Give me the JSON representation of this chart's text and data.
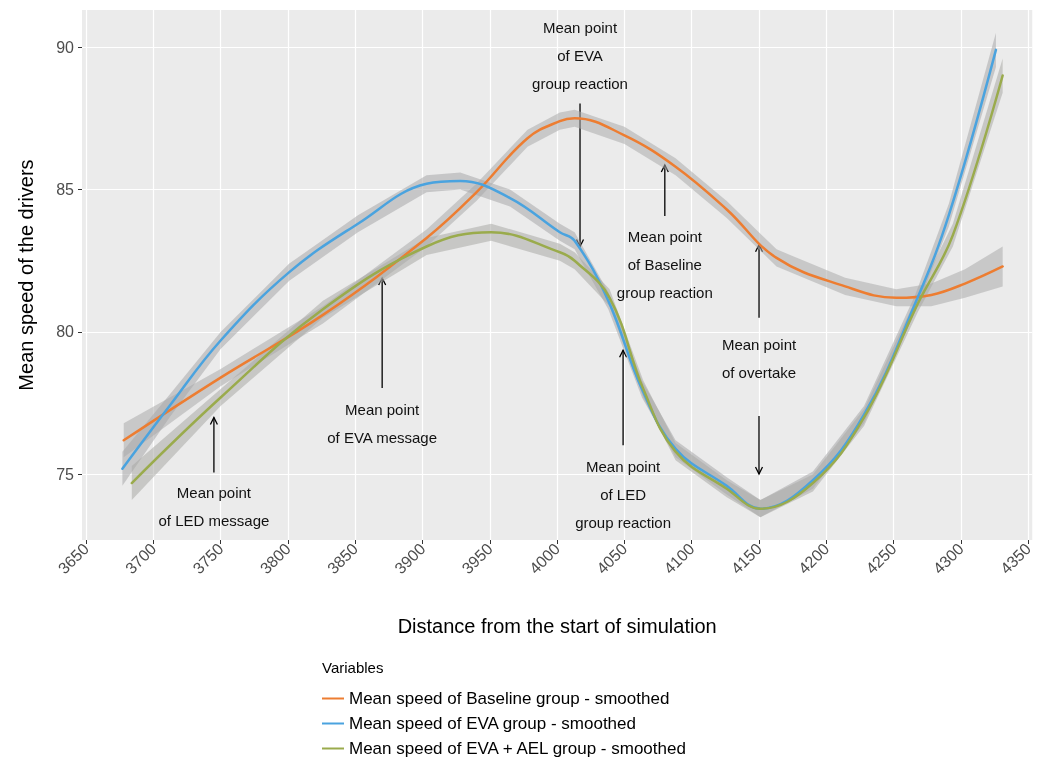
{
  "chart_data": {
    "type": "line",
    "xlabel": "Distance from the start of simulation",
    "ylabel": "Mean speed of the drivers",
    "legend_title": "Variables",
    "legend": "bottom",
    "grid": true,
    "marker": "none",
    "line_style": "solid",
    "xlim": [
      3647,
      4353
    ],
    "xticks": [
      3650,
      3700,
      3750,
      3800,
      3850,
      3900,
      3950,
      4000,
      4050,
      4100,
      4150,
      4200,
      4250,
      4300,
      4350
    ],
    "ylim": [
      72.7,
      91.3
    ],
    "yticks": [
      75,
      80,
      85,
      90
    ],
    "series": [
      {
        "name": "Mean speed of Baseline group - smoothed",
        "color": "#ed7d31",
        "x": [
          3678,
          3750,
          3826,
          3903,
          3940,
          3978,
          4002,
          4013,
          4050,
          4088,
          4126,
          4163,
          4214,
          4252,
          4278,
          4303,
          4331
        ],
        "values": [
          76.2,
          78.4,
          80.6,
          83.3,
          84.9,
          86.8,
          87.4,
          87.5,
          86.9,
          85.8,
          84.3,
          82.6,
          81.6,
          81.2,
          81.3,
          81.7,
          82.3
        ],
        "lower": [
          75.6,
          78.1,
          80.3,
          83.0,
          84.6,
          86.5,
          87.1,
          87.2,
          86.6,
          85.5,
          84.0,
          82.3,
          81.3,
          80.9,
          80.9,
          81.2,
          81.6
        ],
        "upper": [
          76.8,
          78.7,
          80.9,
          83.6,
          85.2,
          87.1,
          87.7,
          87.8,
          87.2,
          86.1,
          84.6,
          82.9,
          81.9,
          81.5,
          81.7,
          82.2,
          83.0
        ]
      },
      {
        "name": "Mean speed of EVA group - smoothed",
        "color": "#4aa3df",
        "x": [
          3677,
          3712,
          3750,
          3801,
          3852,
          3903,
          3928,
          3965,
          4002,
          4013,
          4038,
          4063,
          4088,
          4126,
          4151,
          4190,
          4228,
          4266,
          4291,
          4326
        ],
        "values": [
          75.2,
          77.4,
          79.7,
          82.1,
          83.8,
          85.2,
          85.3,
          84.7,
          83.5,
          83.2,
          81.1,
          78.0,
          75.9,
          74.6,
          73.8,
          74.8,
          77.1,
          81.0,
          84.1,
          89.9
        ],
        "lower": [
          74.6,
          77.0,
          79.4,
          81.8,
          83.5,
          84.9,
          85.0,
          84.4,
          83.2,
          82.9,
          80.8,
          77.7,
          75.6,
          74.3,
          73.5,
          74.5,
          76.8,
          80.7,
          83.7,
          89.3
        ],
        "upper": [
          75.8,
          77.8,
          80.0,
          82.4,
          84.1,
          85.5,
          85.6,
          85.0,
          83.8,
          83.5,
          81.4,
          78.3,
          76.2,
          74.9,
          74.1,
          75.1,
          77.4,
          81.3,
          84.5,
          90.5
        ]
      },
      {
        "name": "Mean speed of EVA + AEL group - smoothed",
        "color": "#9aab4c",
        "x": [
          3684,
          3750,
          3826,
          3903,
          3951,
          4002,
          4013,
          4039,
          4064,
          4088,
          4126,
          4151,
          4190,
          4228,
          4268,
          4294,
          4331
        ],
        "values": [
          74.7,
          77.7,
          80.8,
          83.0,
          83.5,
          82.8,
          82.5,
          81.2,
          78.0,
          75.8,
          74.5,
          73.8,
          74.7,
          77.0,
          81.0,
          83.4,
          89.0
        ],
        "lower": [
          74.1,
          77.4,
          80.5,
          82.7,
          83.2,
          82.5,
          82.2,
          80.9,
          77.7,
          75.5,
          74.2,
          73.5,
          74.4,
          76.7,
          80.7,
          83.0,
          88.4
        ],
        "upper": [
          75.3,
          78.0,
          81.1,
          83.3,
          83.8,
          83.1,
          82.8,
          81.5,
          78.3,
          76.1,
          74.8,
          74.1,
          75.0,
          77.3,
          81.3,
          83.8,
          89.6
        ]
      }
    ],
    "annotations": [
      {
        "text": "Mean point\nof LED message",
        "x": 3745,
        "y": 77.0
      },
      {
        "text": "Mean point\nof EVA message",
        "x": 3870,
        "y": 82.0
      },
      {
        "text": "Mean point\nof EVA\ngroup reaction",
        "x": 4017,
        "y": 83.0
      },
      {
        "text": "Mean point\nof Baseline\ngroup reaction",
        "x": 4080,
        "y": 86.0
      },
      {
        "text": "Mean point\nof LED\ngroup reaction",
        "x": 4049,
        "y": 79.5
      },
      {
        "text": "Mean point\nof overtake",
        "x": 4150,
        "y": 83.2
      }
    ]
  }
}
